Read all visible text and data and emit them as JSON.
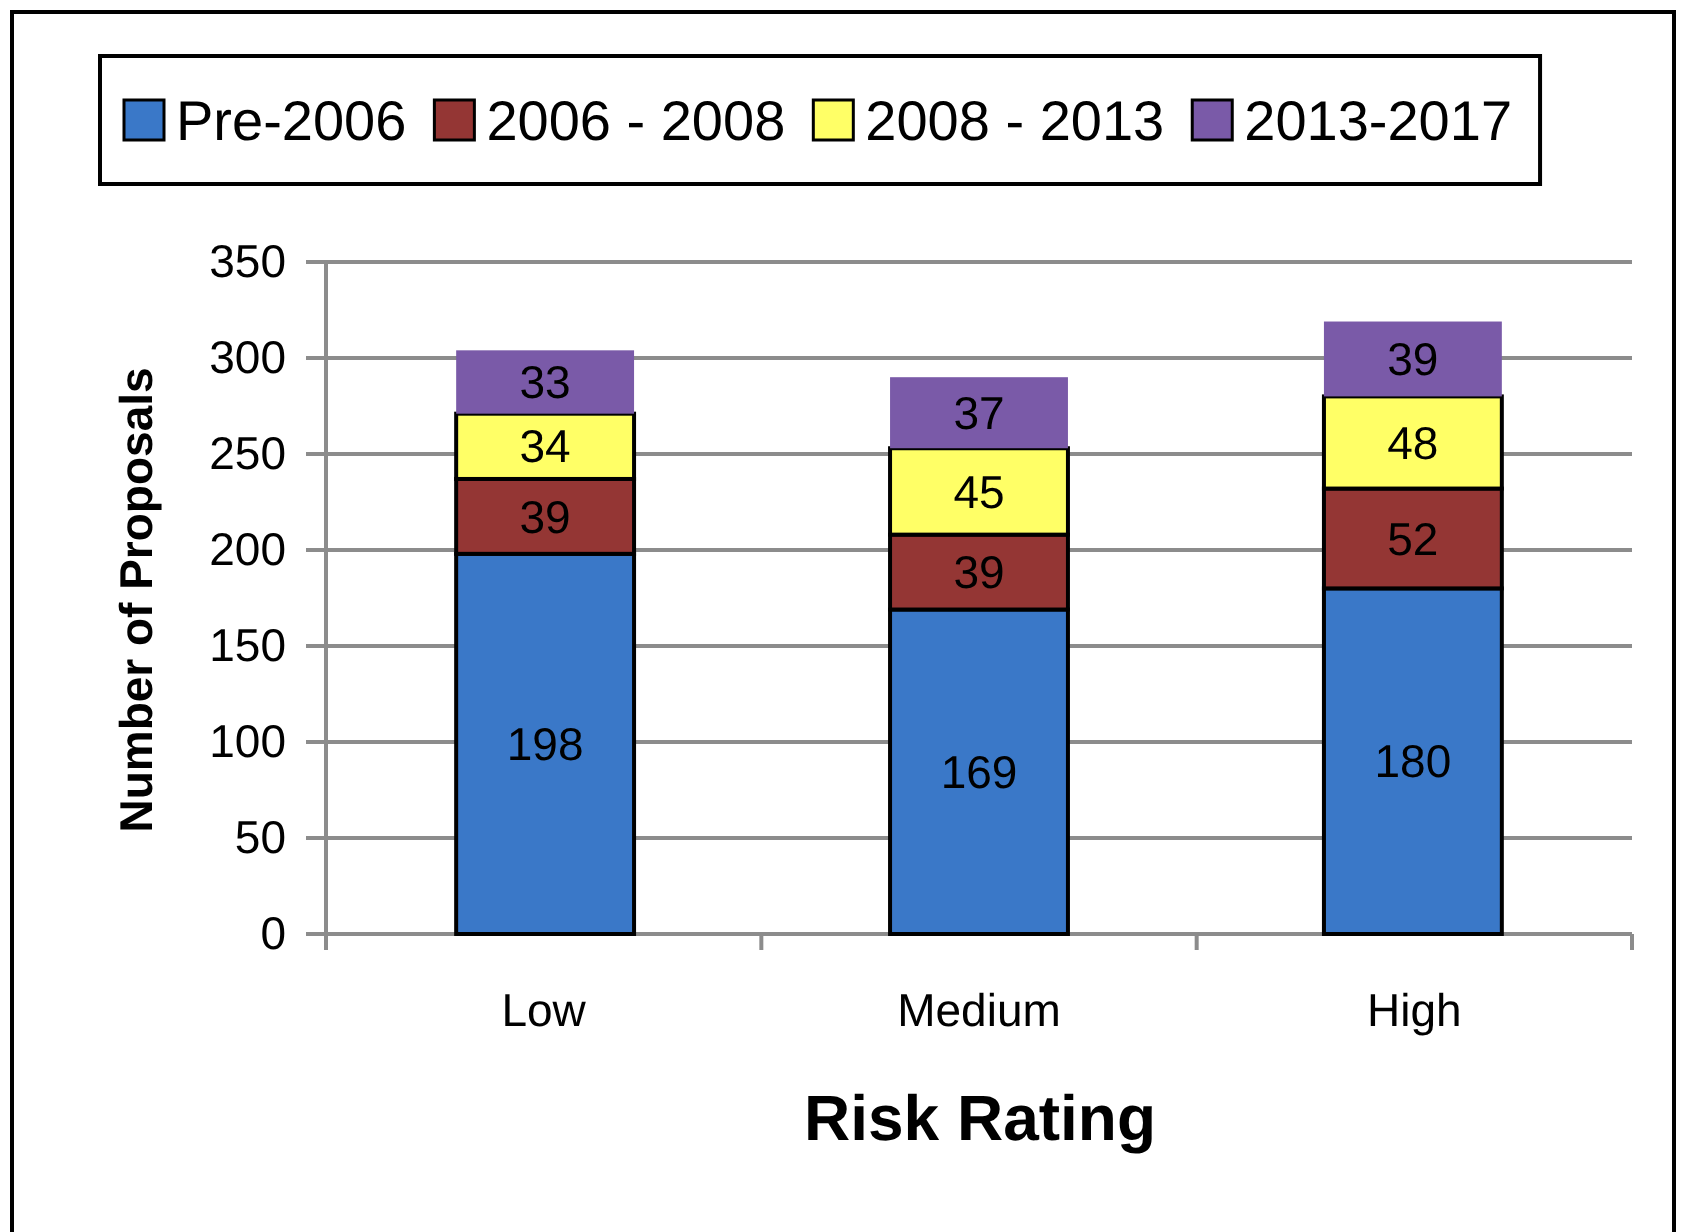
{
  "chart_data": {
    "type": "bar",
    "stacked": true,
    "xlabel": "Risk Rating",
    "ylabel": "Number of Proposals",
    "categories": [
      "Low",
      "Medium",
      "High"
    ],
    "series": [
      {
        "name": "Pre-2006",
        "color": "#3a78c8",
        "values": [
          198,
          169,
          180
        ]
      },
      {
        "name": "2006 - 2008",
        "color": "#943634",
        "values": [
          39,
          39,
          52
        ]
      },
      {
        "name": "2008 - 2013",
        "color": "#ffff66",
        "values": [
          34,
          45,
          48
        ]
      },
      {
        "name": "2013-2017",
        "color": "#7a5aa8",
        "values": [
          33,
          37,
          39
        ]
      }
    ],
    "ylim": [
      0,
      350
    ],
    "yticks": [
      0,
      50,
      100,
      150,
      200,
      250,
      300,
      350
    ],
    "grid": "y",
    "legend": "top",
    "data_labels": true
  }
}
